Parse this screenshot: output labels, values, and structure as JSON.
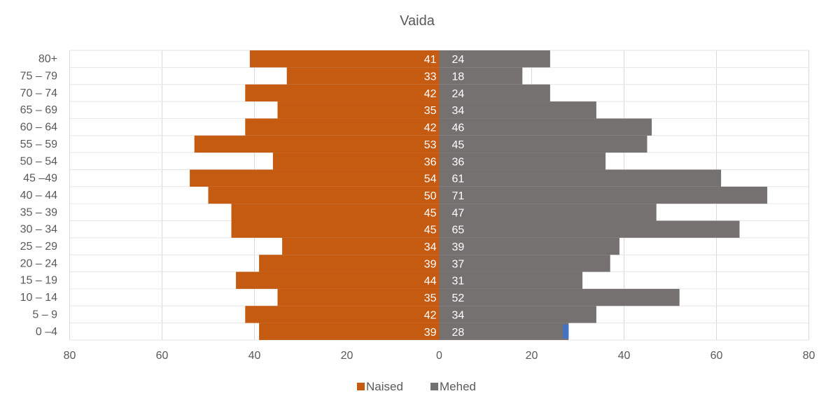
{
  "chart_data": {
    "type": "bar",
    "orientation": "horizontal",
    "title": "Vaida",
    "categories": [
      "80+",
      "75 – 79",
      "70 – 74",
      "65 – 69",
      "60 – 64",
      "55 – 59",
      "50 – 54",
      "45 –49",
      "40 – 44",
      "35 – 39",
      "30 – 34",
      "25 – 29",
      "20 – 24",
      "15 – 19",
      "10 – 14",
      "5 – 9",
      "0 –4"
    ],
    "series": [
      {
        "name": "Naised",
        "color": "#c55a11",
        "side": "left",
        "values": [
          41,
          33,
          42,
          35,
          42,
          53,
          36,
          54,
          50,
          45,
          45,
          34,
          39,
          44,
          35,
          42,
          39
        ]
      },
      {
        "name": "Mehed",
        "color": "#767171",
        "side": "right",
        "values": [
          24,
          18,
          24,
          34,
          46,
          45,
          36,
          61,
          71,
          47,
          65,
          39,
          37,
          31,
          52,
          34,
          28
        ]
      }
    ],
    "x_tick_labels": [
      "80",
      "60",
      "40",
      "20",
      "0",
      "20",
      "40",
      "60",
      "80"
    ],
    "xlim": [
      -80,
      80
    ],
    "grid": true,
    "legend": "bottom-center"
  }
}
